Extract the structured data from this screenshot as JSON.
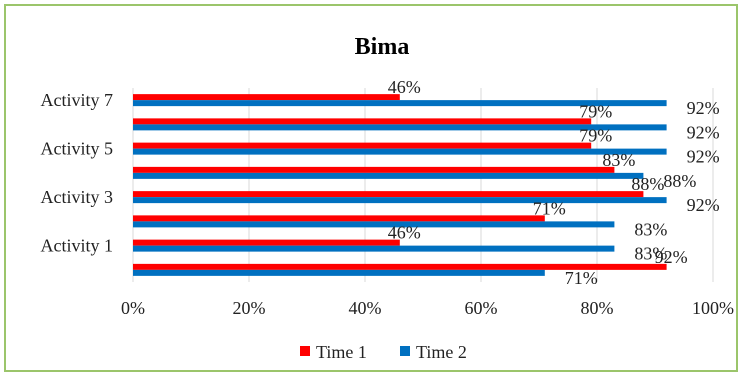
{
  "chart_data": {
    "type": "bar",
    "orientation": "horizontal",
    "title": "Bima",
    "categories": [
      "",
      "Activity 1",
      "",
      "Activity 3",
      "",
      "Activity 5",
      "",
      "Activity 7"
    ],
    "series": [
      {
        "name": "Time 1",
        "color": "#ff0000",
        "values": [
          92,
          46,
          71,
          88,
          83,
          79,
          79,
          46
        ],
        "labels": [
          "92%",
          "46%",
          "71%",
          "88%",
          "83%",
          "79%",
          "79%",
          "46%"
        ]
      },
      {
        "name": "Time 2",
        "color": "#0070c0",
        "values": [
          71,
          83,
          83,
          92,
          88,
          92,
          92,
          92
        ],
        "labels": [
          "71%",
          "83%",
          "83%",
          "92%",
          "88%",
          "92%",
          "92%",
          "92%"
        ]
      }
    ],
    "xlim": [
      0,
      100
    ],
    "xticks": [
      "0%",
      "20%",
      "40%",
      "60%",
      "80%",
      "100%"
    ],
    "grid": true,
    "legend": "bottom",
    "xlabel": "",
    "ylabel": ""
  }
}
